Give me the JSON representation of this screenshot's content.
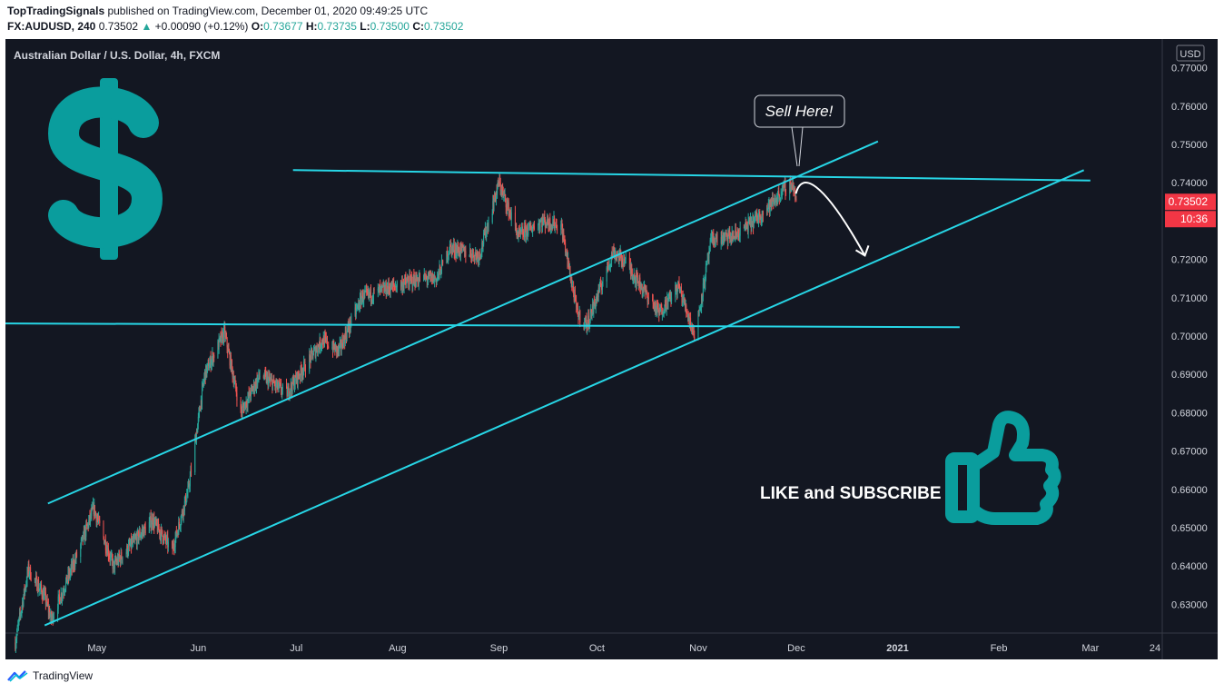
{
  "header": {
    "publisher": "TopTradingSignals",
    "published_text": " published on TradingView.com, December 01, 2020 09:49:25 UTC",
    "symbol_line": "FX:AUDUSD, 240",
    "last": "0.73502",
    "change": "+0.00090 (+0.12%)",
    "o_label": "O:",
    "o": "0.73677",
    "h_label": "H:",
    "h": "0.73735",
    "l_label": "L:",
    "l": "0.73500",
    "c_label": "C:",
    "c": "0.73502"
  },
  "chart_title": "Australian Dollar / U.S. Dollar, 4h, FXCM",
  "currency_badge": "USD",
  "price_tag": {
    "price": "0.73502",
    "countdown": "10:36",
    "color": "#f23645"
  },
  "callout": "Sell Here!",
  "cta": "LIKE and SUBSCRIBE",
  "footer_brand": "TradingView",
  "icons": [
    "dollar-sign-icon",
    "thumbs-up-icon",
    "tradingview-logo-icon"
  ],
  "colors": {
    "background": "#131722",
    "trendline": "#27d6e6",
    "icon": "#0a9d9d",
    "up": "#26a69a",
    "down": "#ef5350"
  },
  "chart_data": {
    "type": "candlestick",
    "ylabel_ticks": [
      "0.63000",
      "0.64000",
      "0.65000",
      "0.66000",
      "0.67000",
      "0.68000",
      "0.69000",
      "0.70000",
      "0.71000",
      "0.72000",
      "0.73000",
      "0.74000",
      "0.75000",
      "0.76000",
      "0.77000"
    ],
    "xlabel_ticks": [
      "May",
      "Jun",
      "Jul",
      "Aug",
      "Sep",
      "Oct",
      "Nov",
      "Dec",
      "2021",
      "Feb",
      "Mar",
      "24"
    ],
    "ylim": [
      0.6225,
      0.7775
    ],
    "xlim": [
      "2020-04-03",
      "2021-03-23"
    ],
    "price_path": [
      [
        "2020-04-06",
        0.62
      ],
      [
        "2020-04-10",
        0.639
      ],
      [
        "2020-04-15",
        0.632
      ],
      [
        "2020-04-17",
        0.626
      ],
      [
        "2020-04-25",
        0.643
      ],
      [
        "2020-04-30",
        0.655
      ],
      [
        "2020-05-06",
        0.64
      ],
      [
        "2020-05-13",
        0.647
      ],
      [
        "2020-05-18",
        0.652
      ],
      [
        "2020-05-24",
        0.644
      ],
      [
        "2020-05-29",
        0.66
      ],
      [
        "2020-06-03",
        0.69
      ],
      [
        "2020-06-09",
        0.701
      ],
      [
        "2020-06-14",
        0.68
      ],
      [
        "2020-06-20",
        0.69
      ],
      [
        "2020-06-28",
        0.685
      ],
      [
        "2020-07-09",
        0.699
      ],
      [
        "2020-07-14",
        0.696
      ],
      [
        "2020-07-21",
        0.71
      ],
      [
        "2020-07-31",
        0.713
      ],
      [
        "2020-08-08",
        0.715
      ],
      [
        "2020-08-13",
        0.715
      ],
      [
        "2020-08-17",
        0.723
      ],
      [
        "2020-08-26",
        0.721
      ],
      [
        "2020-09-01",
        0.74
      ],
      [
        "2020-09-07",
        0.726
      ],
      [
        "2020-09-14",
        0.73
      ],
      [
        "2020-09-20",
        0.729
      ],
      [
        "2020-09-25",
        0.706
      ],
      [
        "2020-09-28",
        0.703
      ],
      [
        "2020-10-06",
        0.722
      ],
      [
        "2020-10-10",
        0.719
      ],
      [
        "2020-10-20",
        0.706
      ],
      [
        "2020-10-26",
        0.713
      ],
      [
        "2020-10-31",
        0.7
      ],
      [
        "2020-11-05",
        0.725
      ],
      [
        "2020-11-12",
        0.726
      ],
      [
        "2020-11-18",
        0.73
      ],
      [
        "2020-11-24",
        0.735
      ],
      [
        "2020-11-28",
        0.739
      ],
      [
        "2020-11-30",
        0.7395
      ],
      [
        "2020-12-01",
        0.73502
      ]
    ],
    "trendlines": [
      {
        "name": "",
        "from": [
          "2020-06-30",
          0.7433
        ],
        "to": [
          "2021-03-01",
          0.7406
        ]
      },
      {
        "name": "",
        "from": [
          "2020-04-03",
          0.7033
        ],
        "to": [
          "2021-01-20",
          0.7023
        ]
      },
      {
        "name": "",
        "from": [
          "2020-04-16",
          0.6563
        ],
        "to": [
          "2020-12-26",
          0.7508
        ]
      },
      {
        "name": "",
        "from": [
          "2020-04-15",
          0.6245
        ],
        "to": [
          "2021-02-27",
          0.7433
        ]
      }
    ],
    "projection": {
      "from": [
        "2020-12-02",
        0.74
      ],
      "to": [
        "2020-12-22",
        0.721
      ]
    }
  }
}
